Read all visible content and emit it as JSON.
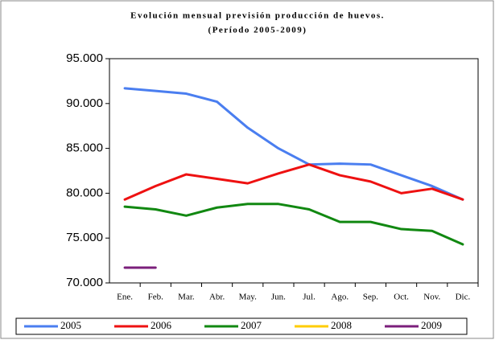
{
  "chart_data": {
    "type": "line",
    "title": "Evolución mensual previsión producción de huevos.",
    "subtitle": "(Período 2005-2009)",
    "categories": [
      "Ene.",
      "Feb.",
      "Mar.",
      "Abr.",
      "May.",
      "Jun.",
      "Jul.",
      "Ago.",
      "Sep.",
      "Oct.",
      "Nov.",
      "Dic."
    ],
    "series": [
      {
        "name": "2005",
        "color": "#4a7ef0",
        "values": [
          91700,
          91400,
          91100,
          90200,
          87300,
          85000,
          83200,
          83300,
          83200,
          82000,
          80800,
          79300
        ]
      },
      {
        "name": "2006",
        "color": "#ee1111",
        "values": [
          79300,
          80800,
          82100,
          81600,
          81100,
          82200,
          83200,
          82000,
          81300,
          80000,
          80500,
          79300
        ]
      },
      {
        "name": "2007",
        "color": "#118811",
        "values": [
          78500,
          78200,
          77500,
          78400,
          78800,
          78800,
          78200,
          76800,
          76800,
          76000,
          75800,
          74300
        ]
      },
      {
        "name": "2008",
        "color": "#ffcc00",
        "values": [
          null,
          null,
          null,
          null,
          null,
          null,
          null,
          null,
          null,
          null,
          null,
          null
        ]
      },
      {
        "name": "2009",
        "color": "#7b1f7b",
        "values": [
          71700,
          71700,
          null,
          null,
          null,
          null,
          null,
          null,
          null,
          null,
          null,
          null
        ]
      }
    ],
    "ylim": [
      70000,
      95000
    ],
    "yticks": [
      {
        "value": 70000,
        "label": "70.000"
      },
      {
        "value": 75000,
        "label": "75.000"
      },
      {
        "value": 80000,
        "label": "80.000"
      },
      {
        "value": 85000,
        "label": "85.000"
      },
      {
        "value": 90000,
        "label": "90.000"
      },
      {
        "value": 95000,
        "label": "95.000"
      }
    ],
    "grid": false,
    "legend": "bottom"
  }
}
